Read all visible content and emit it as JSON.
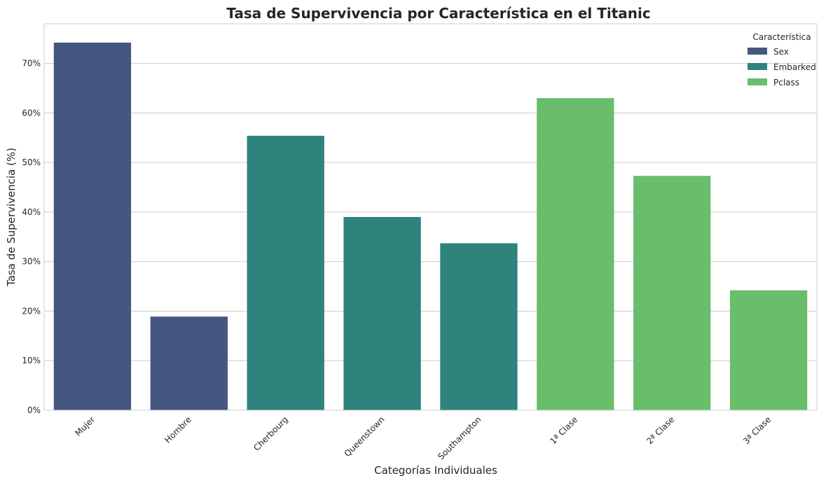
{
  "chart_data": {
    "type": "bar",
    "title": "Tasa de Supervivencia por Característica en el Titanic",
    "xlabel": "Categorías Individuales",
    "ylabel": "Tasa de Supervivencia (%)",
    "ylim": [
      0,
      78
    ],
    "yticks": [
      0,
      10,
      20,
      30,
      40,
      50,
      60,
      70
    ],
    "ytick_format": "{v}%",
    "grid": "horizontal",
    "legend": {
      "title": "Característica",
      "placement": "top-right",
      "entries": [
        {
          "name": "Sex",
          "color": "#455681"
        },
        {
          "name": "Embarked",
          "color": "#2e837c"
        },
        {
          "name": "Pclass",
          "color": "#6abd6b"
        }
      ]
    },
    "categories": [
      "Mujer",
      "Hombre",
      "Cherbourg",
      "Queenstown",
      "Southampton",
      "1ª Clase",
      "2ª Clase",
      "3ª Clase"
    ],
    "values": [
      74.2,
      18.9,
      55.4,
      39.0,
      33.7,
      63.0,
      47.3,
      24.2
    ],
    "groups": [
      "Sex",
      "Sex",
      "Embarked",
      "Embarked",
      "Embarked",
      "Pclass",
      "Pclass",
      "Pclass"
    ]
  }
}
